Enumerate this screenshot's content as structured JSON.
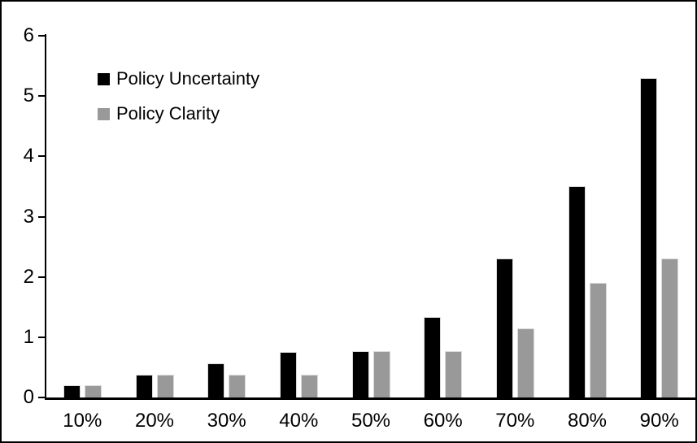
{
  "chart_data": {
    "type": "bar",
    "categories": [
      "10%",
      "20%",
      "30%",
      "40%",
      "50%",
      "60%",
      "70%",
      "80%",
      "90%"
    ],
    "series": [
      {
        "name": "Policy Uncertainty",
        "color": "#000000",
        "values": [
          0.2,
          0.38,
          0.57,
          0.75,
          0.77,
          1.33,
          2.3,
          3.5,
          5.3
        ]
      },
      {
        "name": "Policy Clarity",
        "color": "#999999",
        "values": [
          0.2,
          0.38,
          0.38,
          0.38,
          0.77,
          0.77,
          1.15,
          1.9,
          2.3
        ]
      }
    ],
    "xlabel": "",
    "ylabel": "",
    "ylim": [
      0,
      6
    ],
    "yticks": [
      0,
      1,
      2,
      3,
      4,
      5,
      6
    ],
    "grid": false,
    "legend_position": "top-left-inside",
    "bar_outline_color": "#d9d9d9",
    "axis_color": "#000000",
    "background_color": "#ffffff"
  }
}
